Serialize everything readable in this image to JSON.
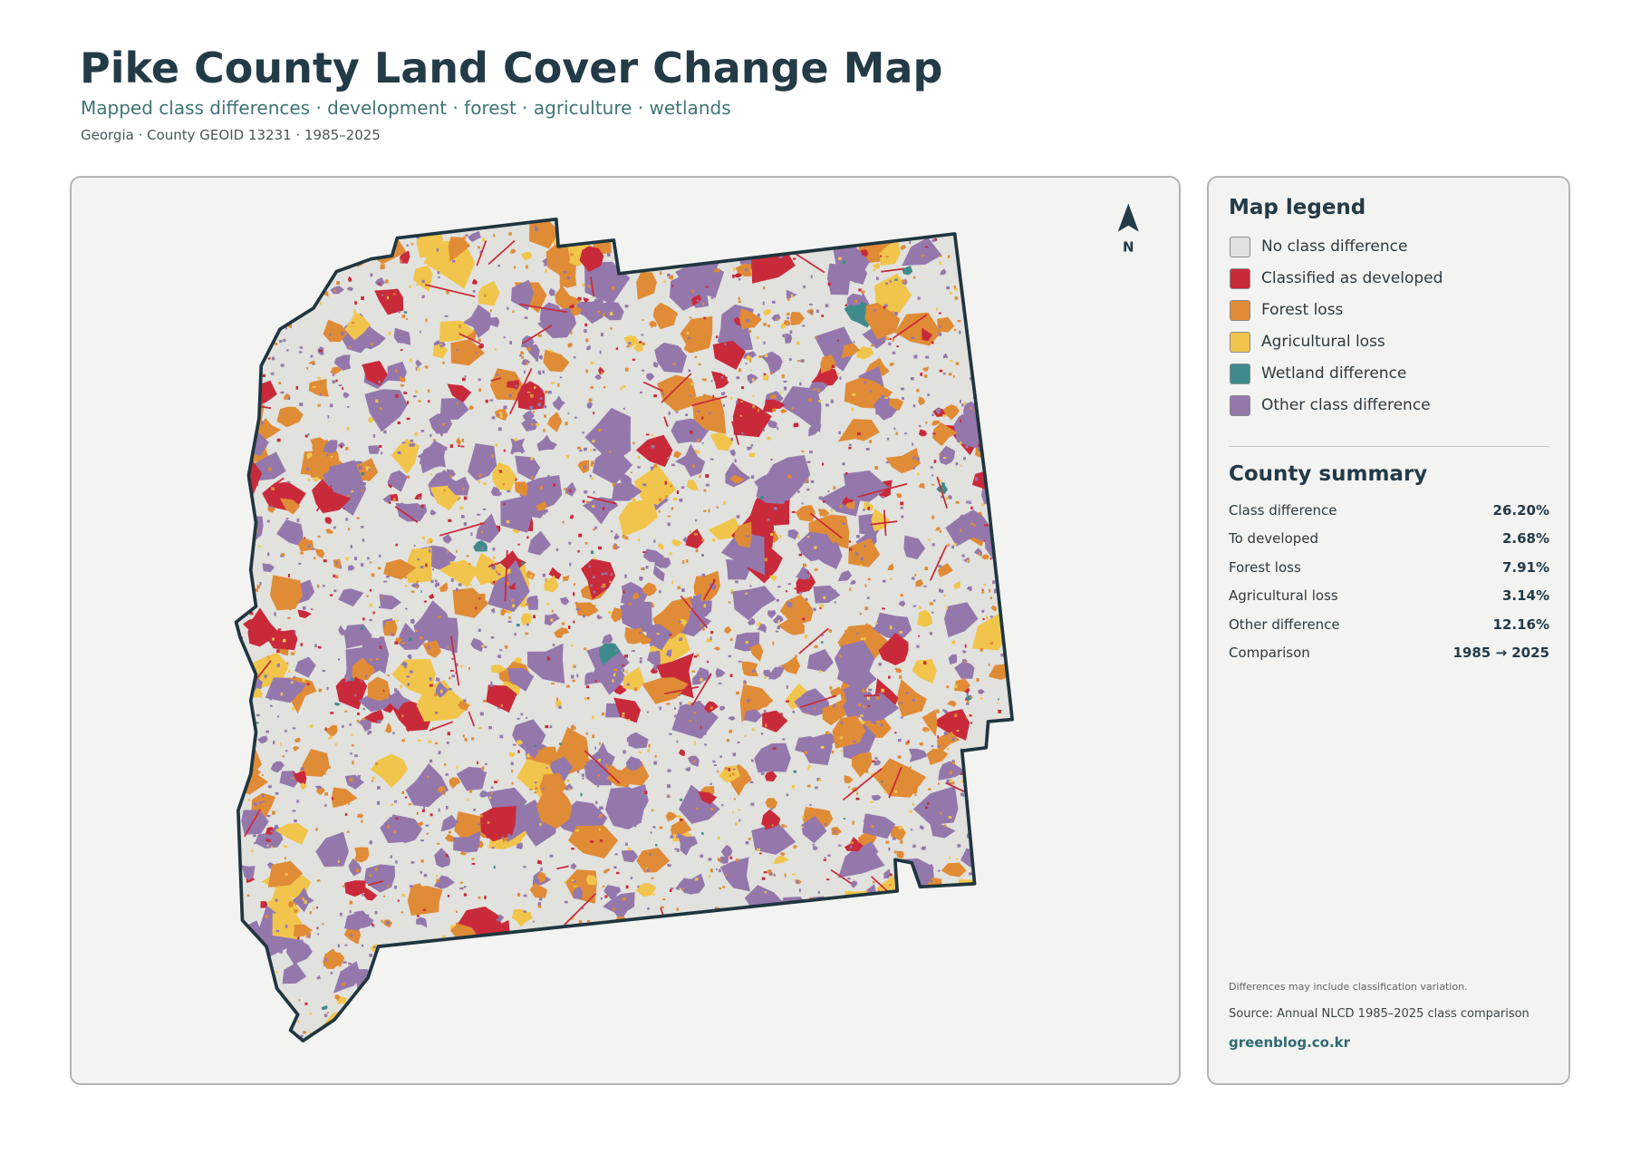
{
  "header": {
    "title": "Pike County Land Cover Change Map",
    "subtitle": "Mapped class differences · development · forest · agriculture · wetlands",
    "meta": "Georgia · County GEOID 13231 · 1985–2025"
  },
  "map": {
    "north_label": "N"
  },
  "legend": {
    "title": "Map legend",
    "items": [
      {
        "label": "No class difference",
        "color": "#e1e1dd"
      },
      {
        "label": "Classified as developed",
        "color": "#c92a3a"
      },
      {
        "label": "Forest loss",
        "color": "#e08b36"
      },
      {
        "label": "Agricultural loss",
        "color": "#f1c54b"
      },
      {
        "label": "Wetland difference",
        "color": "#3f8b8c"
      },
      {
        "label": "Other class difference",
        "color": "#9478ac"
      }
    ]
  },
  "summary": {
    "title": "County summary",
    "rows": [
      [
        "Class difference",
        "26.20%"
      ],
      [
        "To developed",
        "2.68%"
      ],
      [
        "Forest loss",
        "7.91%"
      ],
      [
        "Agricultural loss",
        "3.14%"
      ],
      [
        "Other difference",
        "12.16%"
      ],
      [
        "Comparison",
        "1985 → 2025"
      ]
    ]
  },
  "footer": {
    "note": "Differences may include classification variation.",
    "source": "Source: Annual NLCD 1985–2025 class comparison",
    "site": "greenblog.co.kr"
  }
}
